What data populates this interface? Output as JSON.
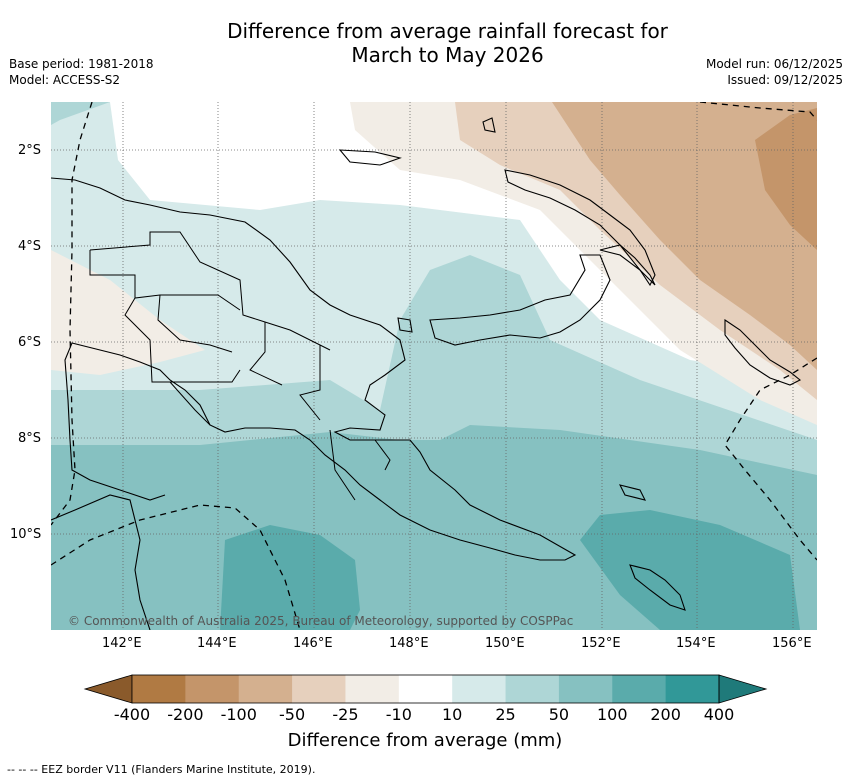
{
  "title": {
    "line1": "Difference from average rainfall forecast for",
    "line2": "March to May 2026"
  },
  "meta_left": {
    "base_period": "Base period: 1981-2018",
    "model": "Model: ACCESS-S2"
  },
  "meta_right": {
    "model_run": "Model run: 06/12/2025",
    "issued": "Issued: 09/12/2025"
  },
  "lat_labels": [
    "2°S",
    "4°S",
    "6°S",
    "8°S",
    "10°S"
  ],
  "lon_labels": [
    "142°E",
    "144°E",
    "146°E",
    "148°E",
    "150°E",
    "152°E",
    "154°E",
    "156°E"
  ],
  "copyright": "© Commonwealth of Australia 2025, Bureau of Meteorology, supported by COSPPac",
  "colorbar": {
    "ticks": [
      "-400",
      "-200",
      "-100",
      "-50",
      "-25",
      "-10",
      "10",
      "25",
      "50",
      "100",
      "200",
      "400"
    ],
    "colors": [
      "#8a5a2b",
      "#b07a43",
      "#c4956a",
      "#d4b08f",
      "#e6d0bd",
      "#f2ede6",
      "#ffffff",
      "#d6eaea",
      "#aed6d6",
      "#86c1c1",
      "#5aabab",
      "#319898",
      "#1f7a7a"
    ],
    "label": "Difference from average (mm)"
  },
  "footnote": "--  --  -- EEZ border V11 (Flanders Marine Institute, 2019)."
}
